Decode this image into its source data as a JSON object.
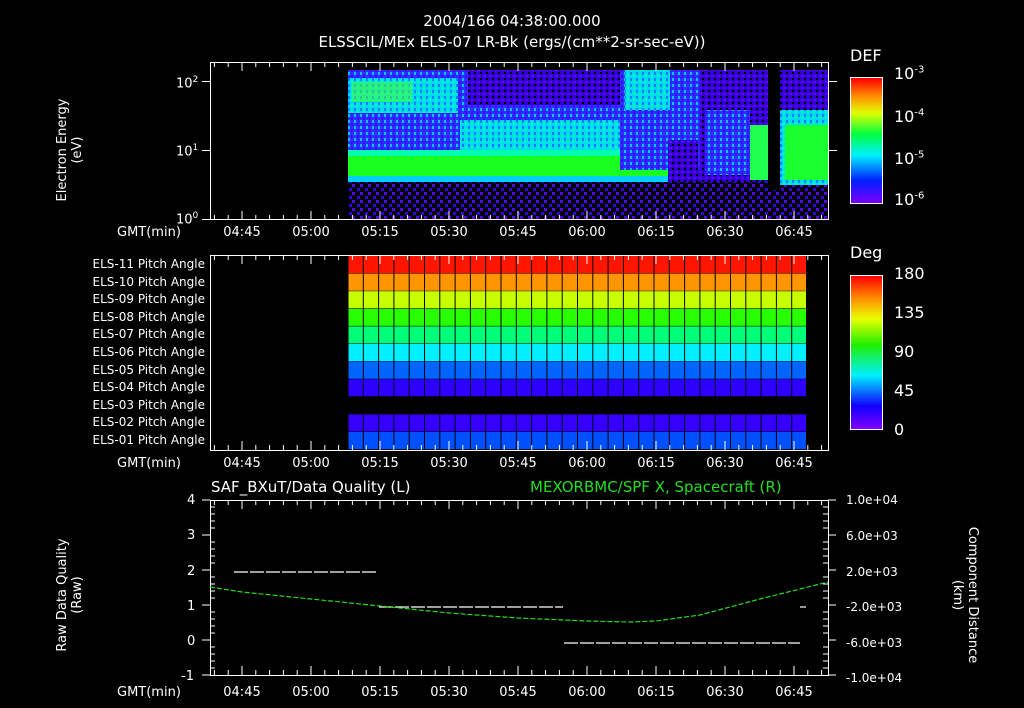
{
  "header": {
    "timestamp": "2004/166 04:38:00.000",
    "subtitle": "ELSSCIL/MEx ELS-07 LR-Bk  (ergs/(cm**2-sr-sec-eV))"
  },
  "time_axis": {
    "label": "GMT(min)",
    "ticks": [
      "04:45",
      "05:00",
      "05:15",
      "05:30",
      "05:45",
      "06:00",
      "06:15",
      "06:30",
      "06:45"
    ]
  },
  "panel1": {
    "ylabel_line1": "Electron Energy",
    "ylabel_line2": "(eV)",
    "yticks": [
      {
        "base": "10",
        "exp": "2"
      },
      {
        "base": "10",
        "exp": "1"
      },
      {
        "base": "10",
        "exp": "0"
      }
    ],
    "colorbar": {
      "title": "DEF",
      "ticks": [
        {
          "base": "10",
          "exp": "-3"
        },
        {
          "base": "10",
          "exp": "-4"
        },
        {
          "base": "10",
          "exp": "-5"
        },
        {
          "base": "10",
          "exp": "-6"
        }
      ]
    }
  },
  "panel2": {
    "rows": [
      "ELS-11 Pitch Angle",
      "ELS-10 Pitch Angle",
      "ELS-09 Pitch Angle",
      "ELS-08 Pitch Angle",
      "ELS-07 Pitch Angle",
      "ELS-06 Pitch Angle",
      "ELS-05 Pitch Angle",
      "ELS-04 Pitch Angle",
      "ELS-03 Pitch Angle",
      "ELS-02 Pitch Angle",
      "ELS-01 Pitch Angle"
    ],
    "row_colors": [
      "#ff1500",
      "#ff9500",
      "#c8ff00",
      "#28ff00",
      "#00ff78",
      "#00f0ff",
      "#0064ff",
      "#2d00ff",
      null,
      "#3500ff",
      "#0050ff"
    ],
    "colorbar": {
      "title": "Deg",
      "ticks": [
        "180",
        "135",
        "90",
        "45",
        "0"
      ]
    }
  },
  "panel3": {
    "left_title": "SAF_BXuT/Data Quality (L)",
    "right_title": "MEXORBMC/SPF X, Spacecraft (R)",
    "ylabel_line1": "Raw Data Quality",
    "ylabel_line2": "(Raw)",
    "yticks_left": [
      "4",
      "3",
      "2",
      "1",
      "0",
      "-1"
    ],
    "yticks_right": [
      "1.0e+04",
      "6.0e+03",
      "2.0e+03",
      "-2.0e+03",
      "-6.0e+03",
      "-1.0e+04"
    ],
    "ylabel_right_line1": "Component Distance",
    "ylabel_right_line2": "(km)"
  },
  "colors": {
    "background": "#000000",
    "axis": "#ffffff",
    "orbit_line": "#22dd22",
    "quality_line": "#ffffff"
  },
  "chart_data": [
    {
      "type": "heatmap",
      "title": "ELSSCIL/MEx ELS-07 LR-Bk (ergs/(cm**2-sr-sec-eV))",
      "xlabel": "GMT(min)",
      "ylabel": "Electron Energy (eV)",
      "x_ticks": [
        "04:45",
        "05:00",
        "05:15",
        "05:30",
        "05:45",
        "06:00",
        "06:15",
        "06:30",
        "06:45"
      ],
      "y_scale": "log",
      "ylim": [
        1,
        150
      ],
      "colorbar": {
        "label": "DEF",
        "scale": "log",
        "range": [
          1e-06,
          0.001
        ]
      },
      "data_start": "05:08",
      "features": [
        {
          "time": "05:08-06:14",
          "energy_eV": "4-8",
          "level": "~1e-4 (green)"
        },
        {
          "time": "05:08-05:27",
          "energy_eV": "20-100",
          "level": "~5e-5 (cyan/green)"
        },
        {
          "time": "06:06-06:12",
          "energy_eV": "40-150",
          "level": "~5e-5"
        },
        {
          "time": "06:40-06:42",
          "energy_eV": "4-20",
          "level": "~1e-4"
        },
        {
          "time": "06:45-06:53",
          "energy_eV": "4-20",
          "level": "~1e-4"
        }
      ]
    },
    {
      "type": "heatmap",
      "title": "ELS Pitch Angle",
      "xlabel": "GMT(min)",
      "categories": [
        "ELS-11",
        "ELS-10",
        "ELS-09",
        "ELS-08",
        "ELS-07",
        "ELS-06",
        "ELS-05",
        "ELS-04",
        "ELS-03",
        "ELS-02",
        "ELS-01"
      ],
      "values_deg": [
        175,
        150,
        128,
        105,
        95,
        75,
        55,
        40,
        null,
        38,
        50
      ],
      "colorbar": {
        "label": "Deg",
        "range": [
          0,
          180
        ]
      },
      "time_range": [
        "05:08",
        "06:48"
      ]
    },
    {
      "type": "line",
      "title": "SAF_BXuT/Data Quality (L) & MEXORBMC/SPF X, Spacecraft (R)",
      "xlabel": "GMT(min)",
      "ylabel": "Raw Data Quality (Raw)",
      "ylim": [
        -1,
        4
      ],
      "y2label": "Component Distance (km)",
      "y2lim": [
        -10000,
        10000
      ],
      "series": [
        {
          "name": "Data Quality (L)",
          "axis": "left",
          "x": [
            "04:43",
            "05:15",
            "05:15",
            "05:55",
            "05:55",
            "06:48"
          ],
          "y": [
            2,
            2,
            1,
            1,
            0,
            0
          ]
        },
        {
          "name": "SPF X, Spacecraft (R)",
          "axis": "right",
          "x": [
            "04:38",
            "04:45",
            "05:00",
            "05:15",
            "05:30",
            "05:45",
            "06:00",
            "06:08",
            "06:15",
            "06:30",
            "06:45",
            "06:53"
          ],
          "y": [
            1800,
            1200,
            0,
            -1800,
            -2900,
            -3700,
            -4100,
            -4200,
            -3900,
            -2500,
            -100,
            1800
          ]
        }
      ]
    }
  ]
}
